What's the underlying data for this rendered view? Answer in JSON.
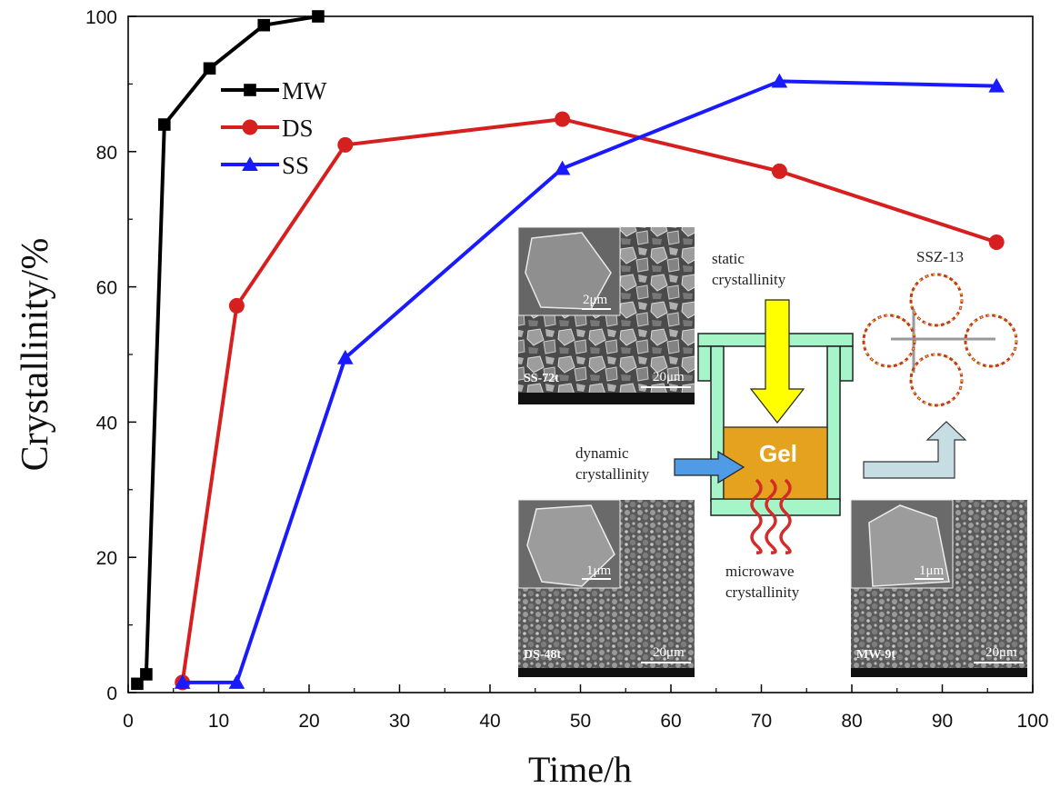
{
  "chart_data": {
    "type": "line",
    "xlabel": "Time/h",
    "ylabel": "Crystallinity/%",
    "xlim": [
      0,
      100
    ],
    "ylim": [
      0,
      100
    ],
    "xticks": [
      "0",
      "10",
      "20",
      "30",
      "40",
      "50",
      "60",
      "70",
      "80",
      "90",
      "100"
    ],
    "yticks": [
      "0",
      "20",
      "40",
      "60",
      "80",
      "100"
    ],
    "legend_position": "upper-left",
    "series": [
      {
        "name": "MW",
        "color": "#000000",
        "marker": "square",
        "x": [
          1,
          2,
          4,
          9,
          15,
          21
        ],
        "y": [
          1.3,
          2.7,
          84,
          92.3,
          98.7,
          100
        ]
      },
      {
        "name": "DS",
        "color": "#d62020",
        "marker": "circle",
        "x": [
          6,
          12,
          24,
          48,
          72,
          96
        ],
        "y": [
          1.5,
          57.2,
          81,
          84.8,
          77.1,
          66.6
        ]
      },
      {
        "name": "SS",
        "color": "#1a1aff",
        "marker": "triangle",
        "x": [
          6,
          12,
          24,
          48,
          72,
          96
        ],
        "y": [
          1.5,
          1.5,
          49.5,
          77.5,
          90.4,
          89.7
        ]
      }
    ]
  },
  "inset": {
    "static_label_1": "static",
    "static_label_2": "crystallinity",
    "dynamic_label_1": "dynamic",
    "dynamic_label_2": "crystallinity",
    "microwave_label_1": "microwave",
    "microwave_label_2": "crystallinity",
    "gel_label": "Gel",
    "ssz_label": "SSZ-13",
    "sem_ss": {
      "sample": "SS-72t",
      "scale_main": "20μm",
      "scale_inset": "2μm"
    },
    "sem_ds": {
      "sample": "DS-48t",
      "scale_main": "20μm",
      "scale_inset": "1μm"
    },
    "sem_mw": {
      "sample": "MW-9t",
      "scale_main": "20μm",
      "scale_inset": "1μm"
    },
    "colors": {
      "autoclave": "#a5f5c8",
      "gel": "#e5a21f",
      "static_arrow": "#ffff00",
      "dynamic_arrow": "#4f9be6",
      "microwave_waves": "#d42a2a",
      "product_arrow": "#c7dde4"
    }
  }
}
